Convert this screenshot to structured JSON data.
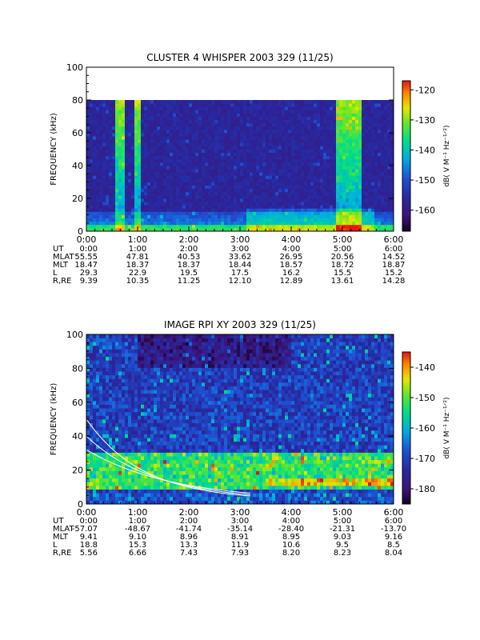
{
  "panels": [
    {
      "title": "CLUSTER 4 WHISPER 2003 329 (11/25)",
      "ylabel": "FREQUENCY (kHz)",
      "yticks": [
        "0",
        "20",
        "40",
        "60",
        "80",
        "100"
      ],
      "xticks": [
        "0:00",
        "1:00",
        "2:00",
        "3:00",
        "4:00",
        "5:00",
        "6:00"
      ],
      "colorbar": {
        "label": "dB( V M⁻¹ Hz⁻¹ᐟ²)",
        "ticks": [
          "-120",
          "-130",
          "-140",
          "-150",
          "-160"
        ]
      },
      "ephemeris": [
        {
          "name": "UT",
          "values": [
            "0:00",
            "1:00",
            "2:00",
            "3:00",
            "4:00",
            "5:00",
            "6:00"
          ]
        },
        {
          "name": "MLAT",
          "values": [
            "55.55",
            "47.81",
            "40.53",
            "33.62",
            "26.95",
            "20.56",
            "14.52"
          ]
        },
        {
          "name": "MLT",
          "values": [
            "18.47",
            "18.37",
            "18.37",
            "18.44",
            "18.57",
            "18.72",
            "18.87"
          ]
        },
        {
          "name": "L",
          "values": [
            "29.3",
            "22.9",
            "19.5",
            "17.5",
            "16.2",
            "15.5",
            "15.2"
          ]
        },
        {
          "name": "R,RE",
          "values": [
            "9.39",
            "10.35",
            "11.25",
            "12.10",
            "12.89",
            "13.61",
            "14.28"
          ]
        }
      ]
    },
    {
      "title": "IMAGE RPI XY 2003 329 (11/25)",
      "ylabel": "FREQUENCY (kHz)",
      "yticks": [
        "0",
        "20",
        "40",
        "60",
        "80",
        "100"
      ],
      "xticks": [
        "0:00",
        "1:00",
        "2:00",
        "3:00",
        "4:00",
        "5:00",
        "6:00"
      ],
      "colorbar": {
        "label": "dB( V M⁻¹ Hz⁻¹ᐟ²)",
        "ticks": [
          "-140",
          "-150",
          "-160",
          "-170",
          "-180"
        ]
      },
      "ephemeris": [
        {
          "name": "UT",
          "values": [
            "0:00",
            "1:00",
            "2:00",
            "3:00",
            "4:00",
            "5:00",
            "6:00"
          ]
        },
        {
          "name": "MLAT",
          "values": [
            "-57.07",
            "-48.67",
            "-41.74",
            "-35.14",
            "-28.40",
            "-21.31",
            "-13.70"
          ]
        },
        {
          "name": "MLT",
          "values": [
            "9.41",
            "9.10",
            "8.96",
            "8.91",
            "8.95",
            "9.03",
            "9.16"
          ]
        },
        {
          "name": "L",
          "values": [
            "18.8",
            "15.3",
            "13.3",
            "11.9",
            "10.6",
            "9.5",
            "8.5"
          ]
        },
        {
          "name": "R,RE",
          "values": [
            "5.56",
            "6.66",
            "7.43",
            "7.93",
            "8.20",
            "8.23",
            "8.04"
          ]
        }
      ]
    }
  ],
  "chart_data": [
    {
      "type": "heatmap",
      "title": "CLUSTER 4 WHISPER 2003 329 (11/25)",
      "xlabel": "UT",
      "ylabel": "FREQUENCY (kHz)",
      "xlim": [
        0,
        6
      ],
      "ylim": [
        0,
        100
      ],
      "data_extent_kHz": [
        0,
        80
      ],
      "colorbar_range_dB": [
        -167,
        -117
      ],
      "colorbar_label": "dB( V M-1 Hz-1/2)",
      "features": [
        {
          "desc": "broadband enhancement",
          "ut_start": 0.58,
          "ut_end": 0.75,
          "freq_kHz": [
            0,
            80
          ]
        },
        {
          "desc": "broadband enhancement",
          "ut_start": 0.93,
          "ut_end": 1.08,
          "freq_kHz": [
            0,
            80
          ]
        },
        {
          "desc": "broadband enhancement",
          "ut_start": 4.9,
          "ut_end": 5.35,
          "freq_kHz": [
            0,
            80
          ]
        },
        {
          "desc": "low-frequency band",
          "ut_start": 0.0,
          "ut_end": 6.0,
          "freq_kHz": [
            2,
            12
          ]
        }
      ]
    },
    {
      "type": "heatmap",
      "title": "IMAGE RPI XY 2003 329 (11/25)",
      "xlabel": "UT",
      "ylabel": "FREQUENCY (kHz)",
      "xlim": [
        0,
        6
      ],
      "ylim": [
        0,
        100
      ],
      "data_extent_kHz": [
        0,
        100
      ],
      "colorbar_range_dB": [
        -185,
        -135
      ],
      "colorbar_label": "dB( V M-1 Hz-1/2)",
      "features": [
        {
          "desc": "enhanced emission band",
          "ut_start": 0.0,
          "ut_end": 6.0,
          "freq_kHz": [
            8,
            30
          ]
        },
        {
          "desc": "quiet region",
          "ut_start": 1.0,
          "ut_end": 4.0,
          "freq_kHz": [
            80,
            100
          ]
        }
      ]
    }
  ]
}
